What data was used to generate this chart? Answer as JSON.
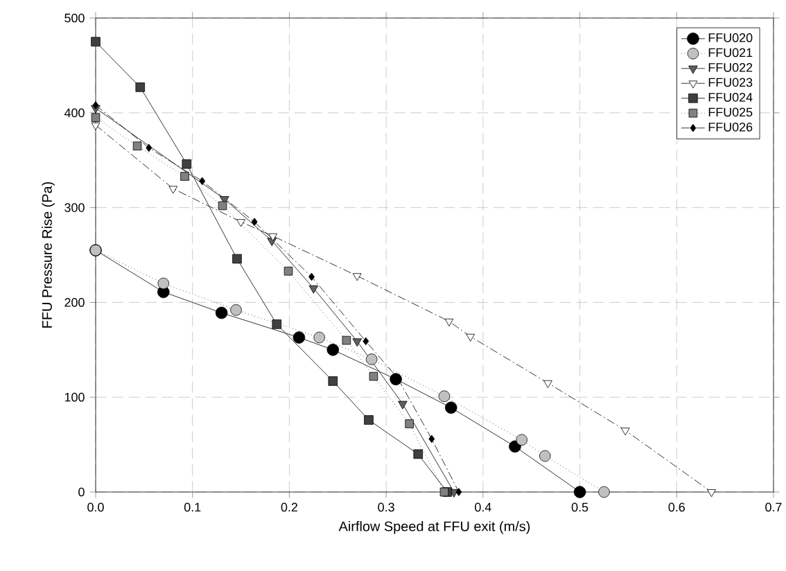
{
  "chart_data": {
    "type": "line",
    "xlabel": "Airflow Speed at FFU exit (m/s)",
    "ylabel": "FFU Pressure Rise (Pa)",
    "xlim": [
      0,
      0.7
    ],
    "ylim": [
      0,
      500
    ],
    "xticks": [
      {
        "value": 0,
        "label": "0.0"
      },
      {
        "value": 0.1,
        "label": "0.1"
      },
      {
        "value": 0.2,
        "label": "0.2"
      },
      {
        "value": 0.3,
        "label": "0.3"
      },
      {
        "value": 0.4,
        "label": "0.4"
      },
      {
        "value": 0.5,
        "label": "0.5"
      },
      {
        "value": 0.6,
        "label": "0.6"
      },
      {
        "value": 0.7,
        "label": "0.7"
      }
    ],
    "yticks": [
      0,
      100,
      200,
      300,
      400,
      500
    ],
    "grid": true,
    "legend": "top right",
    "series": [
      {
        "name": "FFU020",
        "color": "#000000",
        "marker": "circle",
        "line_style": "solid",
        "x": [
          0,
          0.07,
          0.13,
          0.21,
          0.245,
          0.31,
          0.367,
          0.433,
          0.5
        ],
        "values": [
          255,
          211,
          189,
          163,
          150,
          119,
          89,
          48,
          0
        ]
      },
      {
        "name": "FFU021",
        "color": "#c0c0c0",
        "marker": "circle",
        "line_style": "dotted",
        "x": [
          0,
          0.07,
          0.145,
          0.231,
          0.285,
          0.36,
          0.44,
          0.464,
          0.525
        ],
        "values": [
          255,
          220,
          192,
          163,
          140,
          101,
          55,
          38,
          0
        ]
      },
      {
        "name": "FFU022",
        "color": "#606060",
        "marker": "triangle",
        "line_style": "solid",
        "x": [
          0,
          0.133,
          0.182,
          0.225,
          0.27,
          0.317,
          0.37
        ],
        "values": [
          405,
          309,
          265,
          215,
          159,
          93,
          0
        ]
      },
      {
        "name": "FFU023",
        "color": "#ffffff",
        "marker": "triangle",
        "line_style": "dashed",
        "x": [
          0,
          0.08,
          0.15,
          0.183,
          0.27,
          0.365,
          0.387,
          0.467,
          0.547,
          0.636
        ],
        "values": [
          387,
          320,
          285,
          270,
          228,
          180,
          164,
          115,
          65,
          0
        ]
      },
      {
        "name": "FFU024",
        "color": "#404040",
        "marker": "square",
        "line_style": "solid",
        "x": [
          0,
          0.046,
          0.094,
          0.146,
          0.187,
          0.245,
          0.282,
          0.333,
          0.363
        ],
        "values": [
          475,
          427,
          346,
          246,
          177,
          117,
          76,
          40,
          0
        ]
      },
      {
        "name": "FFU025",
        "color": "#808080",
        "marker": "square",
        "line_style": "dotted",
        "x": [
          0,
          0.043,
          0.092,
          0.131,
          0.199,
          0.259,
          0.287,
          0.324,
          0.36
        ],
        "values": [
          395,
          365,
          333,
          302,
          233,
          160,
          122,
          72,
          0
        ]
      },
      {
        "name": "FFU026",
        "color": "#000000",
        "marker": "diamond",
        "line_style": "dashed",
        "x": [
          0,
          0.055,
          0.11,
          0.164,
          0.223,
          0.279,
          0.312,
          0.347,
          0.375
        ],
        "values": [
          408,
          363,
          328,
          285,
          227,
          159,
          120,
          56,
          0
        ]
      }
    ]
  }
}
